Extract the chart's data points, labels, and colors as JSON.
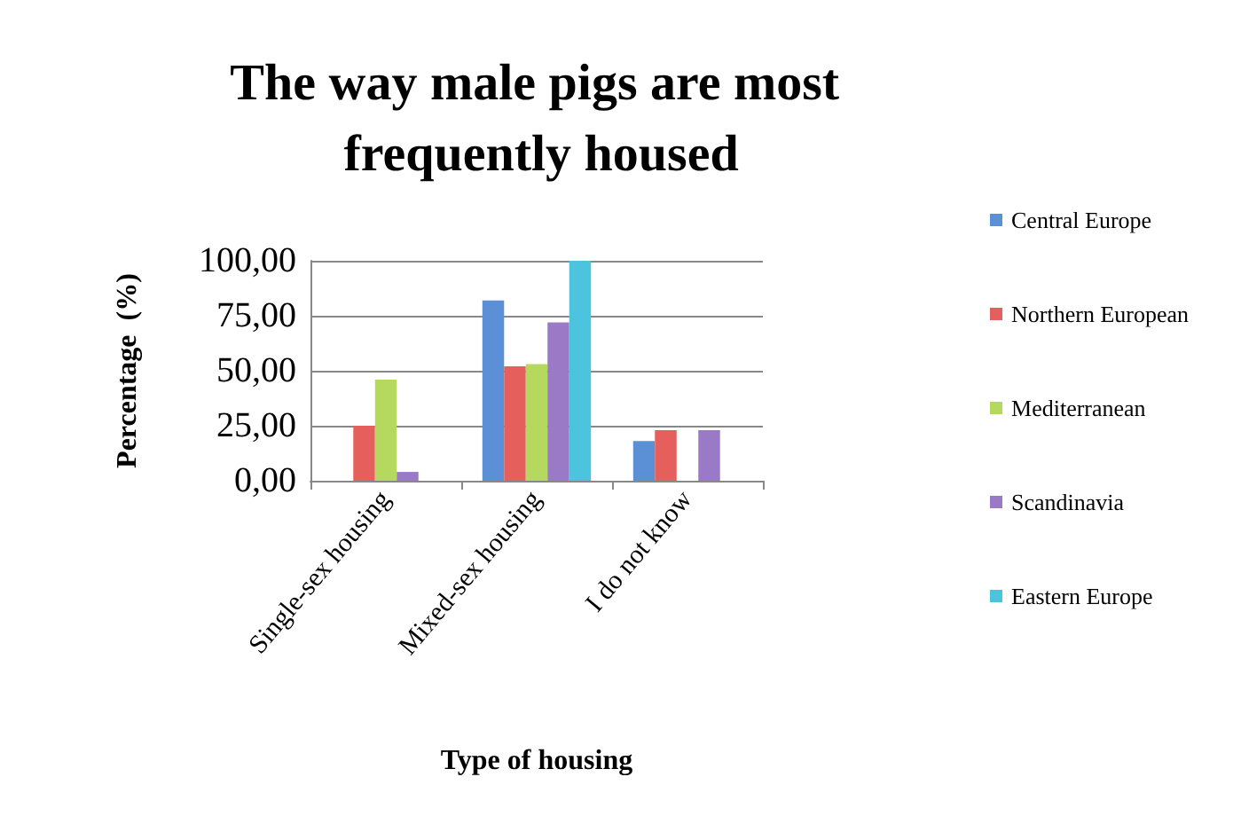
{
  "chart_data": {
    "type": "bar",
    "title": "The way male pigs are most frequently housed",
    "xlabel": "Type of housing",
    "ylabel": "Percentage  (%)",
    "categories": [
      "Single-sex housing",
      "Mixed-sex housing",
      "I do not know"
    ],
    "series": [
      {
        "name": "Central Europe",
        "color": "#5b8fd6",
        "values": [
          0,
          82,
          18
        ]
      },
      {
        "name": "Northern European",
        "color": "#e5605c",
        "values": [
          25,
          52,
          23
        ]
      },
      {
        "name": "Mediterranean",
        "color": "#b5d95f",
        "values": [
          46,
          53,
          0
        ]
      },
      {
        "name": "Scandinavia",
        "color": "#9a79c6",
        "values": [
          4,
          72,
          23
        ]
      },
      {
        "name": "Eastern Europe",
        "color": "#4cc4de",
        "values": [
          0,
          100,
          0
        ]
      }
    ],
    "ylim": [
      0,
      100
    ],
    "yticks": [
      {
        "value": 0,
        "label": "0,00"
      },
      {
        "value": 25,
        "label": "25,00"
      },
      {
        "value": 50,
        "label": "50,00"
      },
      {
        "value": 75,
        "label": "75,00"
      },
      {
        "value": 100,
        "label": "100,00"
      }
    ],
    "grid": "y",
    "legend": "right"
  }
}
